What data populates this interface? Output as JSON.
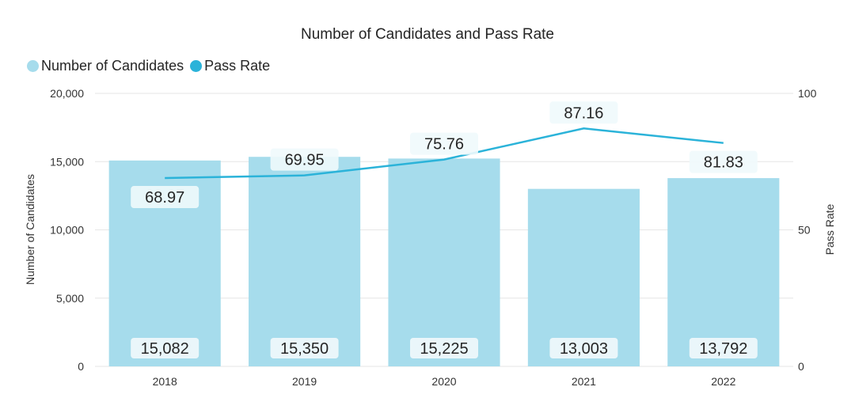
{
  "chart_data": {
    "type": "bar+line",
    "title": "Number of Candidates and Pass Rate",
    "categories": [
      "2018",
      "2019",
      "2020",
      "2021",
      "2022"
    ],
    "series": [
      {
        "name": "Number of Candidates",
        "type": "bar",
        "axis": "left",
        "values": [
          15082,
          15350,
          15225,
          13003,
          13792
        ],
        "labels": [
          "15,082",
          "15,350",
          "15,225",
          "13,003",
          "13,792"
        ],
        "color": "#a6dcec"
      },
      {
        "name": "Pass Rate",
        "type": "line",
        "axis": "right",
        "values": [
          68.97,
          69.95,
          75.76,
          87.16,
          81.83
        ],
        "labels": [
          "68.97",
          "69.95",
          "75.76",
          "87.16",
          "81.83"
        ],
        "color": "#2bb3d9"
      }
    ],
    "ylabel": "Number of Candidates",
    "y2label": "Pass Rate",
    "ylim": [
      0,
      20000
    ],
    "y2lim": [
      0,
      100
    ],
    "yticks": [
      "0",
      "5,000",
      "10,000",
      "15,000",
      "20,000"
    ],
    "y2ticks": [
      "0",
      "50",
      "100"
    ],
    "grid": true,
    "legend": "top-left"
  }
}
